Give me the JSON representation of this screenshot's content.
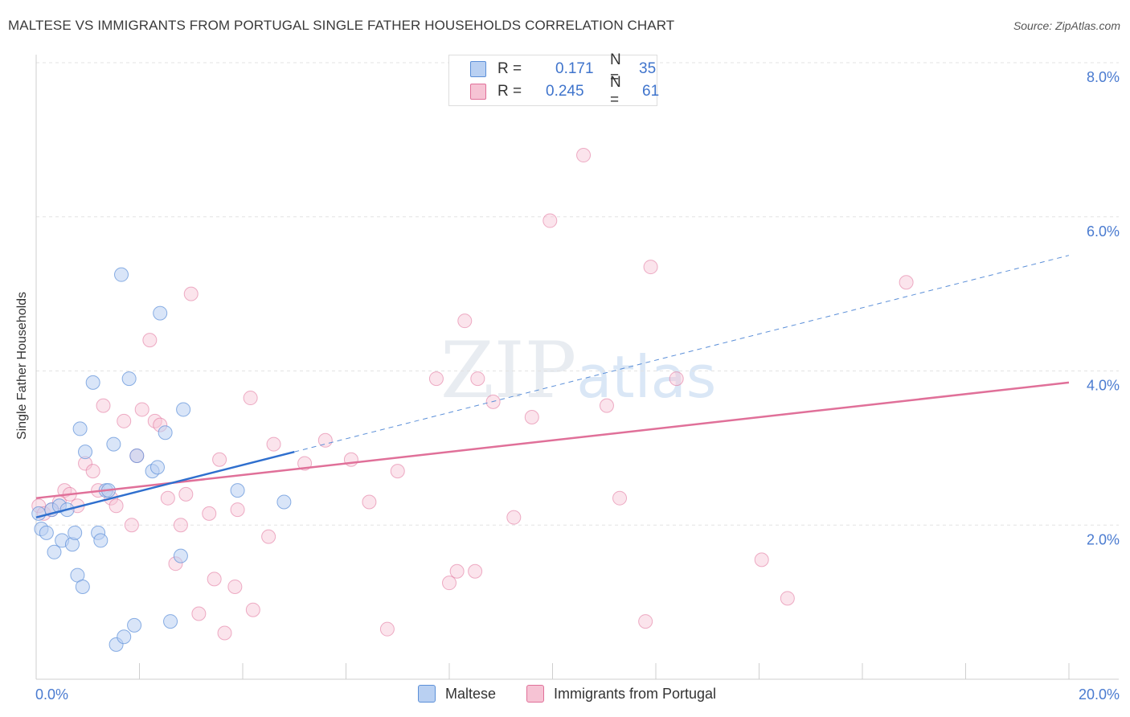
{
  "title": "MALTESE VS IMMIGRANTS FROM PORTUGAL SINGLE FATHER HOUSEHOLDS CORRELATION CHART",
  "source": "Source: ZipAtlas.com",
  "watermark": {
    "zip": "ZIP",
    "atlas": "atlas"
  },
  "colors": {
    "maltese": "#5b8fd8",
    "maltese_fill": "#b9d0f2",
    "portugal": "#e07099",
    "portugal_fill": "#f6c3d4",
    "tick": "#4a7bd0"
  },
  "legend_top": {
    "rows": [
      {
        "r_label": "R =",
        "r_value": "0.171",
        "n_label": "N =",
        "n_value": "35"
      },
      {
        "r_label": "R =",
        "r_value": "0.245",
        "n_label": "N =",
        "n_value": "61"
      }
    ]
  },
  "legend_bottom": {
    "maltese": "Maltese",
    "portugal": "Immigrants from Portugal"
  },
  "chart_data": {
    "type": "scatter",
    "title": "MALTESE VS IMMIGRANTS FROM PORTUGAL SINGLE FATHER HOUSEHOLDS CORRELATION CHART",
    "xlabel": "",
    "ylabel": "Single Father Households",
    "xlim": [
      0,
      20
    ],
    "ylim": [
      0,
      8
    ],
    "x_tick_labels": [
      "0.0%",
      "20.0%"
    ],
    "y_tick_labels": [
      "2.0%",
      "4.0%",
      "6.0%",
      "8.0%"
    ],
    "y_ticks": [
      2,
      4,
      6,
      8
    ],
    "grid": "horizontal dashed",
    "legend_position": "top-center",
    "series": [
      {
        "name": "Maltese",
        "points": [
          [
            0.05,
            2.15
          ],
          [
            0.1,
            1.95
          ],
          [
            0.2,
            1.9
          ],
          [
            0.3,
            2.2
          ],
          [
            0.35,
            1.65
          ],
          [
            0.45,
            2.25
          ],
          [
            0.5,
            1.8
          ],
          [
            0.6,
            2.2
          ],
          [
            0.7,
            1.75
          ],
          [
            0.75,
            1.9
          ],
          [
            0.8,
            1.35
          ],
          [
            0.85,
            3.25
          ],
          [
            0.9,
            1.2
          ],
          [
            0.95,
            2.95
          ],
          [
            1.1,
            3.85
          ],
          [
            1.2,
            1.9
          ],
          [
            1.25,
            1.8
          ],
          [
            1.35,
            2.45
          ],
          [
            1.4,
            2.45
          ],
          [
            1.5,
            3.05
          ],
          [
            1.55,
            0.45
          ],
          [
            1.65,
            5.25
          ],
          [
            1.7,
            0.55
          ],
          [
            1.8,
            3.9
          ],
          [
            1.9,
            0.7
          ],
          [
            1.95,
            2.9
          ],
          [
            2.25,
            2.7
          ],
          [
            2.35,
            2.75
          ],
          [
            2.4,
            4.75
          ],
          [
            2.5,
            3.2
          ],
          [
            2.6,
            0.75
          ],
          [
            2.8,
            1.6
          ],
          [
            2.85,
            3.5
          ],
          [
            3.9,
            2.45
          ],
          [
            4.8,
            2.3
          ]
        ],
        "trend": {
          "x0": 0,
          "y0": 2.1,
          "x1": 5,
          "y1": 2.95,
          "dashed_to_x": 20,
          "dashed_to_y": 5.5
        }
      },
      {
        "name": "Immigrants from Portugal",
        "points": [
          [
            0.05,
            2.25
          ],
          [
            0.15,
            2.15
          ],
          [
            0.3,
            2.2
          ],
          [
            0.45,
            2.3
          ],
          [
            0.55,
            2.45
          ],
          [
            0.65,
            2.4
          ],
          [
            0.8,
            2.25
          ],
          [
            0.95,
            2.8
          ],
          [
            1.1,
            2.7
          ],
          [
            1.2,
            2.45
          ],
          [
            1.3,
            3.55
          ],
          [
            1.45,
            2.35
          ],
          [
            1.55,
            2.25
          ],
          [
            1.7,
            3.35
          ],
          [
            1.85,
            2.0
          ],
          [
            1.95,
            2.9
          ],
          [
            2.05,
            3.5
          ],
          [
            2.2,
            4.4
          ],
          [
            2.3,
            3.35
          ],
          [
            2.4,
            3.3
          ],
          [
            2.55,
            2.35
          ],
          [
            2.7,
            1.5
          ],
          [
            2.8,
            2.0
          ],
          [
            2.9,
            2.4
          ],
          [
            3.0,
            5.0
          ],
          [
            3.15,
            0.85
          ],
          [
            3.35,
            2.15
          ],
          [
            3.45,
            1.3
          ],
          [
            3.55,
            2.85
          ],
          [
            3.65,
            0.6
          ],
          [
            3.85,
            1.2
          ],
          [
            3.9,
            2.2
          ],
          [
            4.15,
            3.65
          ],
          [
            4.2,
            0.9
          ],
          [
            4.5,
            1.85
          ],
          [
            4.6,
            3.05
          ],
          [
            5.2,
            2.8
          ],
          [
            5.6,
            3.1
          ],
          [
            6.1,
            2.85
          ],
          [
            6.45,
            2.3
          ],
          [
            6.8,
            0.65
          ],
          [
            7.0,
            2.7
          ],
          [
            7.75,
            3.9
          ],
          [
            8.0,
            1.25
          ],
          [
            8.15,
            1.4
          ],
          [
            8.3,
            4.65
          ],
          [
            8.5,
            1.4
          ],
          [
            8.55,
            3.9
          ],
          [
            8.85,
            3.6
          ],
          [
            9.25,
            2.1
          ],
          [
            9.6,
            3.4
          ],
          [
            9.95,
            5.95
          ],
          [
            10.6,
            6.8
          ],
          [
            11.05,
            3.55
          ],
          [
            11.3,
            2.35
          ],
          [
            11.8,
            0.75
          ],
          [
            11.9,
            5.35
          ],
          [
            12.4,
            3.9
          ],
          [
            14.05,
            1.55
          ],
          [
            14.55,
            1.05
          ],
          [
            16.85,
            5.15
          ]
        ],
        "trend": {
          "x0": 0,
          "y0": 2.35,
          "x1": 20,
          "y1": 3.85
        }
      }
    ]
  }
}
